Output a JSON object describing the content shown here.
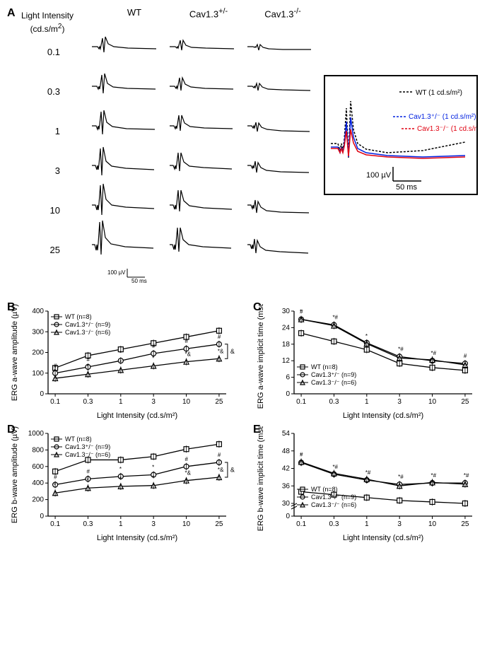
{
  "panelA": {
    "label": "A",
    "y_header": "Light Intensity\n(cd.s/m²)",
    "columns": [
      "WT",
      "Cav1.3⁺/⁻",
      "Cav1.3⁻/⁻"
    ],
    "intensities": [
      "0.1",
      "0.3",
      "1",
      "3",
      "10",
      "25"
    ],
    "scale_bar": {
      "v_label": "100 µV",
      "h_label": "50 ms"
    },
    "inset": {
      "traces": [
        {
          "label": "WT (1 cd.s/m²)",
          "color": "#000000"
        },
        {
          "label": "Cav1.3⁺/⁻ (1 cd.s/m²)",
          "color": "#0020e0"
        },
        {
          "label": "Cav1.3⁻/⁻ (1 cd.s/m²)",
          "color": "#e00010"
        }
      ],
      "scale_v": "100 µV",
      "scale_h": "50 ms"
    }
  },
  "panelB": {
    "label": "B",
    "ylabel": "ERG a-wave amplitude (µV)",
    "xlabel": "Light Intensity (cd.s/m²)",
    "ylim": [
      0,
      400
    ],
    "ytick_step": 100,
    "xticks": [
      "0.1",
      "0.3",
      "1",
      "3",
      "10",
      "25"
    ],
    "legend_pos": "top-left",
    "series": [
      {
        "name": "WT (n=8)",
        "marker": "square",
        "values": [
          125,
          185,
          215,
          245,
          275,
          305
        ]
      },
      {
        "name": "Cav1.3⁺/⁻ (n=9)",
        "marker": "circle",
        "values": [
          100,
          130,
          160,
          195,
          218,
          240
        ],
        "marks": [
          "#",
          "#",
          "*",
          "#",
          "#",
          "#"
        ]
      },
      {
        "name": "Cav1.3⁻/⁻ (n=6)",
        "marker": "triangle",
        "values": [
          75,
          95,
          115,
          135,
          155,
          170
        ],
        "marks": [
          "*",
          "*",
          "*",
          "*",
          "*&",
          "*&"
        ]
      }
    ],
    "bracket_right": "&"
  },
  "panelC": {
    "label": "C",
    "ylabel": "ERG a-wave implicit time (msec)",
    "xlabel": "Light Intensity (cd.s/m²)",
    "ylim": [
      0,
      30
    ],
    "yticks": [
      0,
      6,
      12,
      18,
      24,
      30
    ],
    "xticks": [
      "0.1",
      "0.3",
      "1",
      "3",
      "10",
      "25"
    ],
    "legend_pos": "bottom-left",
    "series": [
      {
        "name": "WT (n=8)",
        "marker": "square",
        "values": [
          22,
          19,
          16,
          11,
          9.5,
          8.5
        ]
      },
      {
        "name": "Cav1.3⁺/⁻ (n=9)",
        "marker": "circle",
        "values": [
          27,
          25,
          18.5,
          13.5,
          12,
          11
        ],
        "marks": [
          "*",
          "*#",
          "",
          "*#",
          "*#",
          "#"
        ]
      },
      {
        "name": "Cav1.3⁻/⁻ (n=6)",
        "marker": "triangle",
        "values": [
          27,
          24.7,
          18.2,
          13,
          12.3,
          10.5
        ],
        "marks": [
          "#",
          "",
          "*",
          "",
          "",
          ""
        ]
      }
    ]
  },
  "panelD": {
    "label": "D",
    "ylabel": "ERG b-wave amplitude (µV)",
    "xlabel": "Light Intensity (cd.s/m²)",
    "ylim": [
      0,
      1000
    ],
    "ytick_step": 200,
    "xticks": [
      "0.1",
      "0.3",
      "1",
      "3",
      "10",
      "25"
    ],
    "legend_pos": "top-left",
    "series": [
      {
        "name": "WT (n=8)",
        "marker": "square",
        "values": [
          540,
          680,
          680,
          720,
          810,
          870
        ]
      },
      {
        "name": "Cav1.3⁺/⁻ (n=9)",
        "marker": "circle",
        "values": [
          380,
          450,
          480,
          500,
          600,
          650
        ],
        "marks": [
          "#",
          "#",
          "*",
          "*",
          "#",
          "#"
        ]
      },
      {
        "name": "Cav1.3⁻/⁻ (n=6)",
        "marker": "triangle",
        "values": [
          280,
          340,
          360,
          370,
          430,
          470
        ],
        "marks": [
          "*",
          "*",
          "*",
          "*",
          "*&",
          "*&"
        ]
      }
    ],
    "bracket_right": "&"
  },
  "panelE": {
    "label": "E",
    "ylabel": "ERG b-wave implicit time (msec)",
    "xlabel": "Light Intensity (cd.s/m²)",
    "ylim_broken": true,
    "yticks": [
      0,
      30,
      36,
      42,
      48,
      54
    ],
    "xticks": [
      "0.1",
      "0.3",
      "1",
      "3",
      "10",
      "25"
    ],
    "legend_pos": "bottom-left",
    "series": [
      {
        "name": "WT (n=8)",
        "marker": "square",
        "values": [
          34,
          33,
          32,
          31,
          30.5,
          30
        ]
      },
      {
        "name": "Cav1.3⁺/⁻ (n=9)",
        "marker": "circle",
        "values": [
          44,
          40,
          38,
          36.5,
          37,
          37
        ],
        "marks": [
          "*",
          "*#",
          "*#",
          "*#",
          "*#",
          "*#"
        ]
      },
      {
        "name": "Cav1.3⁻/⁻ (n=6)",
        "marker": "triangle",
        "values": [
          44.2,
          40.3,
          38.3,
          36,
          37.2,
          36.6
        ],
        "marks": [
          "#",
          "",
          "",
          "",
          "",
          ""
        ]
      }
    ]
  },
  "colors": {
    "line": "#000000",
    "marker_fill": "#ffffff",
    "bg": "#ffffff"
  }
}
